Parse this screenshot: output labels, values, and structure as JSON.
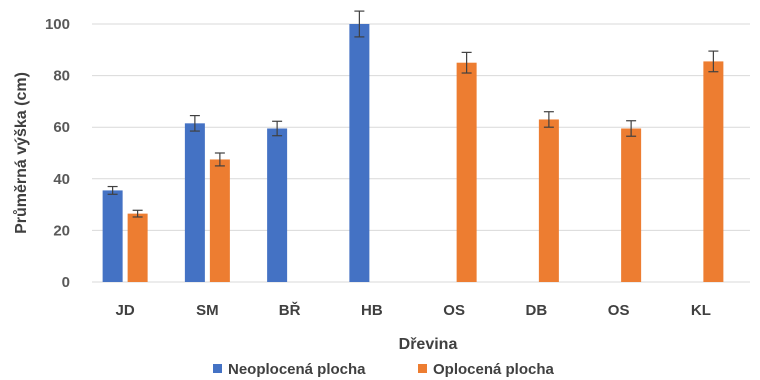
{
  "chart_data": {
    "type": "bar",
    "title": "",
    "xlabel": "Dřevina",
    "ylabel": "Průměrná výška (cm)",
    "ylim": [
      0,
      100
    ],
    "yticks": [
      0,
      20,
      40,
      60,
      80,
      100
    ],
    "grid": true,
    "legend_position": "bottom",
    "categories": [
      "JD",
      "SM",
      "BŘ",
      "HB",
      "OS",
      "DB",
      "OS",
      "KL"
    ],
    "series": [
      {
        "name": "Neoplocená plocha",
        "color": "#4472C4",
        "values": [
          35.5,
          61.5,
          59.5,
          100,
          null,
          null,
          null,
          null
        ],
        "errors": [
          1.5,
          3,
          2.8,
          5,
          null,
          null,
          null,
          null
        ]
      },
      {
        "name": "Oplocená plocha",
        "color": "#ED7D31",
        "values": [
          26.5,
          47.5,
          null,
          null,
          85,
          63,
          59.5,
          85.5
        ],
        "errors": [
          1.3,
          2.5,
          null,
          null,
          4,
          3,
          3,
          4
        ]
      }
    ]
  }
}
